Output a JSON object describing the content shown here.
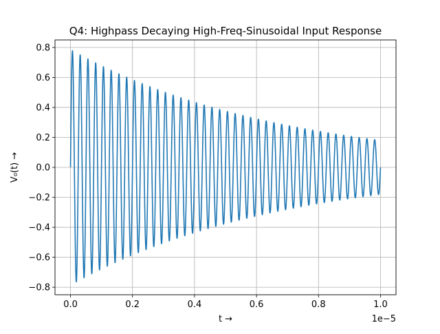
{
  "chart_data": {
    "type": "line",
    "title": "Q4: Highpass Decaying High-Freq-Sinusoidal Input Response",
    "xlabel": "t →",
    "ylabel": "V₀(t) →",
    "x_offset_label": "1e−5",
    "xlim": [
      -0.05,
      1.05
    ],
    "ylim": [
      -0.85,
      0.85
    ],
    "x_scale_multiplier": 1e-05,
    "x_ticks": [
      0.0,
      0.2,
      0.4,
      0.6,
      0.8,
      1.0
    ],
    "x_tick_labels": [
      "0.0",
      "0.2",
      "0.4",
      "0.6",
      "0.8",
      "1.0"
    ],
    "y_ticks": [
      -0.8,
      -0.6,
      -0.4,
      -0.2,
      0.0,
      0.2,
      0.4,
      0.6,
      0.8
    ],
    "y_tick_labels": [
      "−0.8",
      "−0.6",
      "−0.4",
      "−0.2",
      "0.0",
      "0.2",
      "0.4",
      "0.6",
      "0.8"
    ],
    "grid": true,
    "line_color": "#1f77b4",
    "series": [
      {
        "description": "decaying sinusoid, x in units of 1e-5 s",
        "x_start": 0.0,
        "x_end": 1.0,
        "cycles": 40,
        "peak_amplitudes": [
          [
            0.005,
            0.78
          ],
          [
            0.5,
            0.39
          ],
          [
            1.0,
            0.18
          ]
        ],
        "end_value": 0.0
      }
    ]
  }
}
